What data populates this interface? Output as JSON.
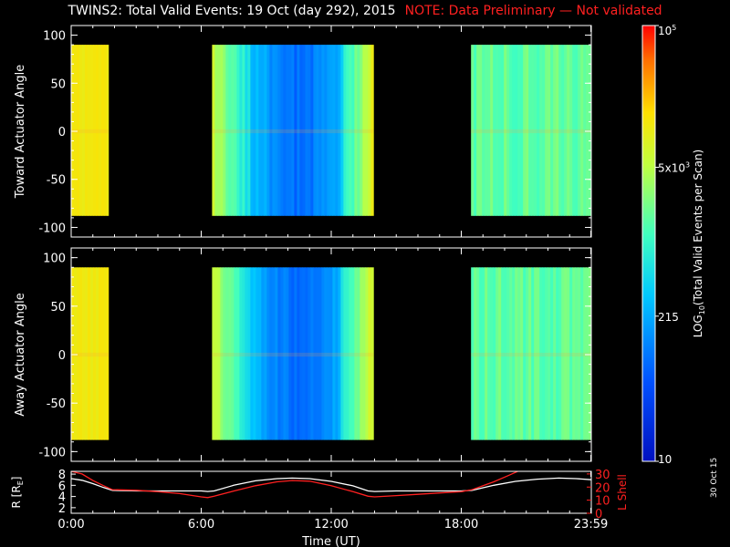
{
  "title": {
    "main": "TWINS2: Total Valid Events: 19 Oct (day 292), 2015",
    "note": "NOTE: Data Preliminary — Not validated"
  },
  "date_stamp": "30 Oct 15",
  "colors": {
    "background": "#000000",
    "axis": "#ffffff",
    "note": "#ff2020",
    "r_line": "#ffffff",
    "lshell_line": "#ff2020"
  },
  "chart_data": [
    {
      "type": "heatmap",
      "panel": "toward",
      "ylabel": "Toward Actuator Angle",
      "xlim": [
        0,
        24
      ],
      "ylim": [
        -110,
        110
      ],
      "yticks": [
        "100",
        "50",
        "0",
        "-50",
        "-100"
      ],
      "yticks_values": [
        100,
        50,
        0,
        -50,
        -100
      ],
      "angle_range": [
        -88,
        90
      ],
      "blocks": [
        {
          "t_start": 0.0,
          "t_end": 1.72,
          "profile": "yellow"
        },
        {
          "t_start": 6.5,
          "t_end": 13.95,
          "profile": "dip"
        },
        {
          "t_start": 18.45,
          "t_end": 24.0,
          "profile": "cyanish"
        }
      ]
    },
    {
      "type": "heatmap",
      "panel": "away",
      "ylabel": "Away Actuator Angle",
      "xlim": [
        0,
        24
      ],
      "ylim": [
        -110,
        110
      ],
      "yticks": [
        "100",
        "50",
        "0",
        "-50",
        "-100"
      ],
      "yticks_values": [
        100,
        50,
        0,
        -50,
        -100
      ],
      "angle_range": [
        -88,
        90
      ],
      "blocks": [
        {
          "t_start": 0.0,
          "t_end": 1.72,
          "profile": "yellow"
        },
        {
          "t_start": 6.5,
          "t_end": 13.95,
          "profile": "dip"
        },
        {
          "t_start": 18.45,
          "t_end": 24.0,
          "profile": "cyanish"
        }
      ]
    },
    {
      "type": "line",
      "panel": "orbit",
      "xlabel": "Time (UT)",
      "xlim": [
        0,
        24
      ],
      "xticks": [
        "0:00",
        "6:00",
        "12:00",
        "18:00",
        "23:59"
      ],
      "xticks_values": [
        0,
        6,
        12,
        18,
        23.98
      ],
      "ylabel_left": "R [R",
      "ylabel_left_sub": "E",
      "ylabel_left_end": "]",
      "ylim_left": [
        1,
        8.5
      ],
      "yticks_left": [
        "8",
        "6",
        "4",
        "2"
      ],
      "yticks_left_values": [
        8,
        6,
        4,
        2
      ],
      "ylabel_right": "L Shell",
      "ylim_right": [
        0,
        32
      ],
      "yticks_right": [
        "30",
        "20",
        "10",
        "0"
      ],
      "yticks_right_values": [
        30,
        20,
        10,
        0
      ],
      "series": [
        {
          "axis": "left",
          "x": [
            0,
            0.5,
            1,
            1.5,
            1.9,
            3,
            4,
            5,
            6,
            6.3,
            6.6,
            7.5,
            8.5,
            9.5,
            10.2,
            11,
            12,
            13,
            13.7,
            14,
            15,
            16,
            17,
            18,
            18.5,
            19.5,
            20.5,
            21.5,
            22.5,
            23.3,
            24
          ],
          "y": [
            7.2,
            6.9,
            6.3,
            5.6,
            5.1,
            5.0,
            5.0,
            5.0,
            5.0,
            4.9,
            5.0,
            6.0,
            6.8,
            7.2,
            7.3,
            7.2,
            6.7,
            5.9,
            5.0,
            4.9,
            5.0,
            5.0,
            5.0,
            5.0,
            5.1,
            6.0,
            6.7,
            7.1,
            7.3,
            7.2,
            7.0
          ]
        },
        {
          "axis": "right",
          "x": [
            0,
            0.5,
            1,
            1.5,
            1.9,
            3,
            4,
            5,
            6,
            6.3,
            6.6,
            7.5,
            8.5,
            9.5,
            10.2,
            11,
            12,
            13,
            13.7,
            14,
            15,
            16,
            17,
            18,
            18.5,
            19.5,
            20.2,
            20.6
          ],
          "y": [
            32,
            30,
            25,
            21,
            18,
            17.5,
            16.5,
            15,
            12.5,
            12,
            13,
            17,
            21,
            24,
            25,
            24.5,
            21,
            16.5,
            13,
            12.5,
            13.5,
            14.5,
            15.5,
            16.5,
            18,
            24,
            29,
            32
          ]
        }
      ]
    },
    {
      "type": "colorbar",
      "label": "LOG",
      "label_sub": "10",
      "label_rest": "(Total Valid Events per Scan)",
      "ticks": [
        {
          "label": "10",
          "sup": "5",
          "value": 100000
        },
        {
          "label": "5x10",
          "sup": "3",
          "value": 5000
        },
        {
          "label": "215",
          "sup": "",
          "value": 215
        },
        {
          "label": "10",
          "sup": "",
          "value": 10
        }
      ],
      "range": [
        10,
        100000
      ],
      "scale": "log"
    }
  ]
}
